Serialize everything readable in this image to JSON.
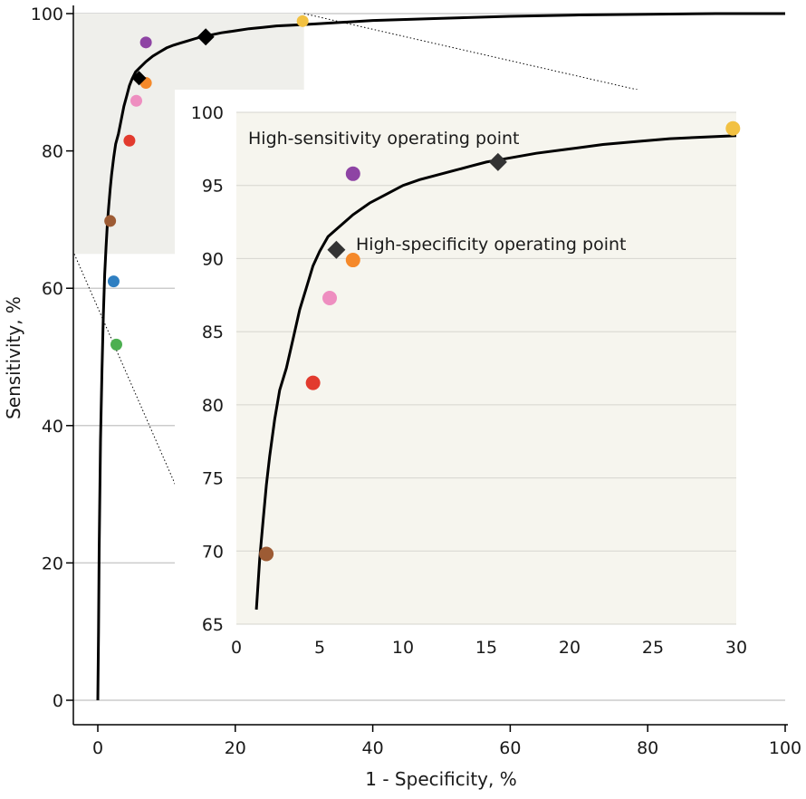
{
  "chart_data": {
    "type": "scatter",
    "title": "",
    "xlabel": "1 - Specificity, %",
    "ylabel": "Sensitivity, %",
    "xlim": [
      0,
      100
    ],
    "ylim": [
      0,
      100
    ],
    "x_ticks": [
      "0",
      "20",
      "40",
      "60",
      "80",
      "100"
    ],
    "y_ticks": [
      "0",
      "20",
      "40",
      "60",
      "80",
      "100"
    ],
    "grid": "horizontal",
    "colors": {
      "curve": "#000000",
      "grid": "#cccccc",
      "zoom_region": "#efefeb",
      "inset_bg": "#f6f5ee",
      "operating_point": "#333333"
    },
    "roc_curve": {
      "x": [
        0,
        0.1,
        0.2,
        0.4,
        0.6,
        0.8,
        1.0,
        1.2,
        1.4,
        1.6,
        1.8,
        2.0,
        2.3,
        2.6,
        3.0,
        3.4,
        3.8,
        4.2,
        4.6,
        5.0,
        5.5,
        6.0,
        7.0,
        8.0,
        9.0,
        10,
        11,
        12,
        13,
        14,
        15,
        16,
        18,
        20,
        22,
        24,
        26,
        28,
        30,
        35,
        40,
        50,
        60,
        70,
        80,
        90,
        100
      ],
      "y": [
        0,
        10,
        22,
        38,
        48,
        56,
        62,
        66,
        69.5,
        72,
        74.5,
        76.5,
        79,
        81,
        82.5,
        84.5,
        86.5,
        88,
        89.5,
        90.5,
        91.5,
        92,
        93,
        93.8,
        94.4,
        95,
        95.4,
        95.7,
        96,
        96.3,
        96.6,
        96.8,
        97.2,
        97.5,
        97.8,
        98.0,
        98.2,
        98.3,
        98.4,
        98.7,
        99.0,
        99.3,
        99.6,
        99.8,
        99.9,
        100,
        100
      ]
    },
    "operating_points": [
      {
        "name": "High-sensitivity operating point",
        "x": 15.7,
        "y": 96.6
      },
      {
        "name": "High-specificity operating point",
        "x": 6.0,
        "y": 90.6
      }
    ],
    "comparison_points": [
      {
        "x": 7.0,
        "y": 95.8,
        "color": "#8e44a4"
      },
      {
        "x": 29.8,
        "y": 98.9,
        "color": "#f2c142"
      },
      {
        "x": 7.0,
        "y": 89.9,
        "color": "#f5892a"
      },
      {
        "x": 5.6,
        "y": 87.3,
        "color": "#ee8ec0"
      },
      {
        "x": 4.6,
        "y": 81.5,
        "color": "#e23b2e"
      },
      {
        "x": 1.8,
        "y": 69.8,
        "color": "#9d5b34"
      },
      {
        "x": 2.3,
        "y": 61.0,
        "color": "#2f7fc1"
      },
      {
        "x": 2.7,
        "y": 51.8,
        "color": "#4caf50"
      }
    ],
    "inset": {
      "xlim": [
        0,
        30
      ],
      "ylim": [
        65,
        100
      ],
      "x_ticks": [
        "0",
        "5",
        "10",
        "15",
        "20",
        "25",
        "30"
      ],
      "y_ticks": [
        "65",
        "70",
        "75",
        "80",
        "85",
        "90",
        "95",
        "100"
      ],
      "annotations": [
        {
          "text": "High-sensitivity operating point"
        },
        {
          "text": "High-specificity operating point"
        }
      ]
    }
  }
}
